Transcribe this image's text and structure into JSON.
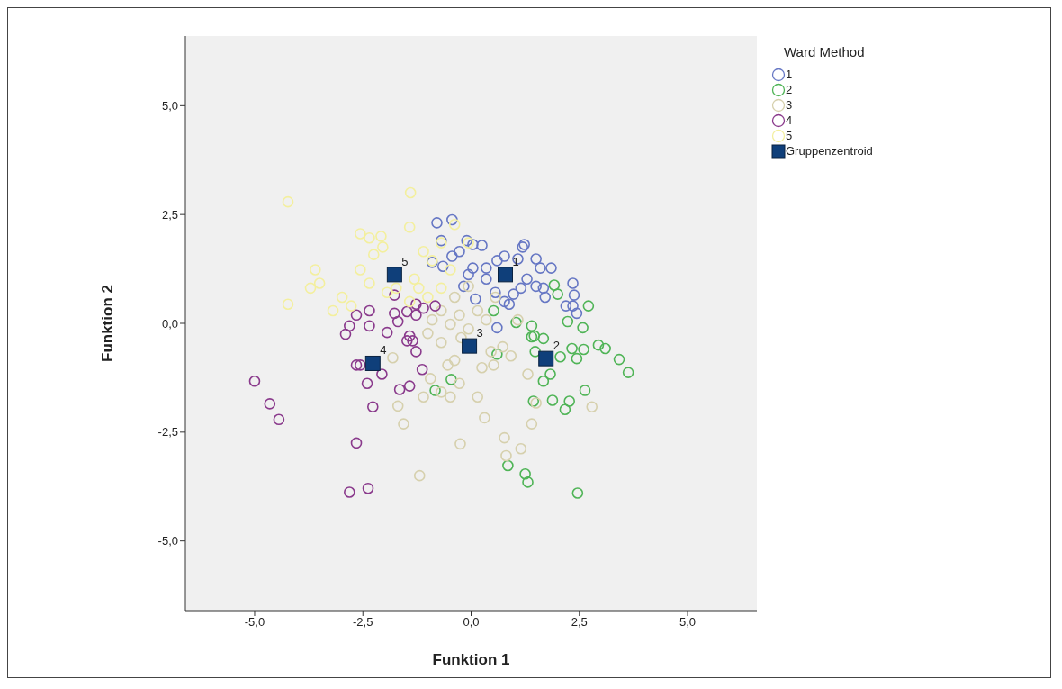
{
  "chart_data": {
    "type": "scatter",
    "xlabel": "Funktion 1",
    "ylabel": "Funktion 2",
    "legend_title": "Ward Method",
    "legend": "right",
    "grid": false,
    "xlim": [
      -6.6,
      6.6
    ],
    "ylim": [
      -6.6,
      6.6
    ],
    "xticks": [
      {
        "value": -5,
        "label": "-5,0"
      },
      {
        "value": -2.5,
        "label": "-2,5"
      },
      {
        "value": 0,
        "label": "0,0"
      },
      {
        "value": 2.5,
        "label": "2,5"
      },
      {
        "value": 5,
        "label": "5,0"
      }
    ],
    "yticks": [
      {
        "value": -5,
        "label": "-5,0"
      },
      {
        "value": -2.5,
        "label": "-2,5"
      },
      {
        "value": 0,
        "label": "0,0"
      },
      {
        "value": 2.5,
        "label": "2,5"
      },
      {
        "value": 5,
        "label": "5,0"
      }
    ],
    "series": [
      {
        "name": "1",
        "color": "#6677c4",
        "marker": "circle",
        "x": [
          -0.79,
          -0.44,
          -0.69,
          -0.9,
          -0.65,
          -0.44,
          -0.1,
          0.04,
          0.25,
          0.04,
          0.35,
          0.6,
          0.77,
          1.19,
          1.23,
          1.08,
          1.5,
          1.85,
          2.38,
          2.35,
          2.44,
          2.19,
          1.71,
          1.5,
          1.15,
          0.98,
          0.77,
          0.56,
          0.35,
          -0.06,
          -0.17,
          0.6,
          0.88,
          1.29,
          1.6,
          2.35,
          1.67,
          0.1,
          -0.27
        ],
        "values": [
          2.31,
          2.38,
          1.9,
          1.4,
          1.31,
          1.54,
          1.9,
          1.81,
          1.79,
          1.27,
          1.27,
          1.44,
          1.54,
          1.75,
          1.81,
          1.48,
          1.48,
          1.27,
          0.65,
          0.4,
          0.23,
          0.4,
          0.6,
          0.85,
          0.81,
          0.67,
          0.5,
          0.71,
          1.02,
          1.12,
          0.85,
          -0.1,
          0.44,
          1.02,
          1.27,
          0.92,
          0.81,
          0.56,
          1.65
        ]
      },
      {
        "name": "2",
        "color": "#4fb456",
        "marker": "circle",
        "x": [
          0.85,
          1.25,
          1.31,
          2.46,
          2.63,
          1.88,
          2.27,
          2.17,
          1.44,
          1.67,
          1.83,
          0.6,
          2.06,
          2.33,
          2.6,
          2.44,
          2.94,
          3.1,
          3.42,
          3.63,
          1.48,
          1.4,
          1.92,
          2.0,
          2.71,
          2.58,
          2.23,
          1.04,
          1.4,
          1.46,
          0.52,
          1.67,
          -0.83,
          -0.46
        ],
        "values": [
          -3.27,
          -3.46,
          -3.65,
          -3.9,
          -1.54,
          -1.77,
          -1.79,
          -1.98,
          -1.79,
          -1.33,
          -1.17,
          -0.71,
          -0.77,
          -0.58,
          -0.6,
          -0.81,
          -0.5,
          -0.58,
          -0.83,
          -1.13,
          -0.65,
          -0.31,
          0.88,
          0.67,
          0.4,
          -0.1,
          0.04,
          0.02,
          -0.06,
          -0.29,
          0.29,
          -0.35,
          -1.54,
          -1.29
        ]
      },
      {
        "name": "3",
        "color": "#d6d0ad",
        "marker": "circle",
        "x": [
          -1.81,
          -1.1,
          -1.19,
          -1.56,
          -1.69,
          -0.94,
          -0.69,
          -0.48,
          -0.25,
          0.31,
          0.15,
          -0.27,
          -0.54,
          -0.38,
          0.25,
          0.52,
          0.77,
          0.81,
          1.15,
          1.4,
          1.5,
          2.79,
          1.31,
          0.46,
          -0.9,
          -0.69,
          -0.48,
          -0.27,
          -0.06,
          0.15,
          0.35,
          -0.38,
          -0.06,
          0.56,
          -1.0,
          -0.69,
          -0.23,
          0.73,
          1.08,
          0.92
        ],
        "values": [
          -0.79,
          -1.69,
          -3.5,
          -2.31,
          -1.9,
          -1.27,
          -1.58,
          -1.69,
          -2.77,
          -2.17,
          -1.69,
          -1.38,
          -0.96,
          -0.85,
          -1.02,
          -0.96,
          -2.63,
          -3.04,
          -2.88,
          -2.31,
          -1.83,
          -1.92,
          -1.17,
          -0.65,
          0.08,
          0.29,
          -0.02,
          0.19,
          -0.13,
          0.29,
          0.08,
          0.6,
          0.85,
          0.6,
          -0.23,
          -0.44,
          -0.33,
          -0.54,
          0.08,
          -0.75
        ]
      },
      {
        "name": "4",
        "color": "#8a3a8c",
        "marker": "circle",
        "x": [
          -5.0,
          -4.65,
          -4.44,
          -2.38,
          -2.81,
          -2.65,
          -2.27,
          -2.4,
          -2.65,
          -2.56,
          -2.06,
          -1.65,
          -1.42,
          -1.13,
          -1.27,
          -1.48,
          -1.35,
          -1.94,
          -2.9,
          -2.81,
          -2.65,
          -2.35,
          -2.35,
          -1.77,
          -1.77,
          -1.48,
          -1.27,
          -1.1,
          -0.83,
          -1.27,
          -1.69,
          -1.42
        ],
        "values": [
          -1.33,
          -1.85,
          -2.21,
          -3.79,
          -3.88,
          -2.75,
          -1.92,
          -1.38,
          -0.96,
          -0.96,
          -1.17,
          -1.52,
          -1.44,
          -1.06,
          -0.65,
          -0.4,
          -0.4,
          -0.21,
          -0.25,
          -0.06,
          0.19,
          0.29,
          -0.06,
          0.65,
          0.23,
          0.27,
          0.19,
          0.35,
          0.4,
          0.44,
          0.04,
          -0.29
        ]
      },
      {
        "name": "5",
        "color": "#f3ef9e",
        "marker": "circle",
        "x": [
          -4.23,
          -4.23,
          -3.6,
          -3.5,
          -3.71,
          -2.98,
          -3.19,
          -2.56,
          -2.35,
          -2.08,
          -2.04,
          -2.25,
          -1.4,
          -1.42,
          -2.56,
          -2.35,
          -1.73,
          -1.31,
          -1.21,
          -1.0,
          -1.42,
          -0.69,
          -0.48,
          -0.9,
          -1.1,
          -1.94,
          -2.77,
          -0.38,
          -0.06,
          -0.69
        ],
        "values": [
          2.79,
          0.44,
          1.23,
          0.92,
          0.81,
          0.6,
          0.29,
          2.06,
          1.96,
          2.0,
          1.75,
          1.58,
          3.0,
          2.21,
          1.23,
          0.92,
          0.81,
          1.02,
          0.81,
          0.6,
          0.5,
          0.81,
          1.23,
          1.44,
          1.65,
          0.71,
          0.4,
          2.27,
          1.85,
          1.85
        ]
      },
      {
        "name": "Gruppenzentroid",
        "color": "#0f3f7a",
        "marker": "square",
        "x": [
          0.79,
          1.73,
          -0.04,
          -2.27,
          -1.77
        ],
        "values": [
          1.12,
          -0.81,
          -0.52,
          -0.92,
          1.12
        ]
      }
    ],
    "annotations": [
      {
        "text": "1",
        "x": 0.79,
        "y": 1.12
      },
      {
        "text": "2",
        "x": 1.73,
        "y": -0.81
      },
      {
        "text": "3",
        "x": -0.04,
        "y": -0.52
      },
      {
        "text": "4",
        "x": -2.27,
        "y": -0.92
      },
      {
        "text": "5",
        "x": -1.77,
        "y": 1.12
      }
    ]
  }
}
